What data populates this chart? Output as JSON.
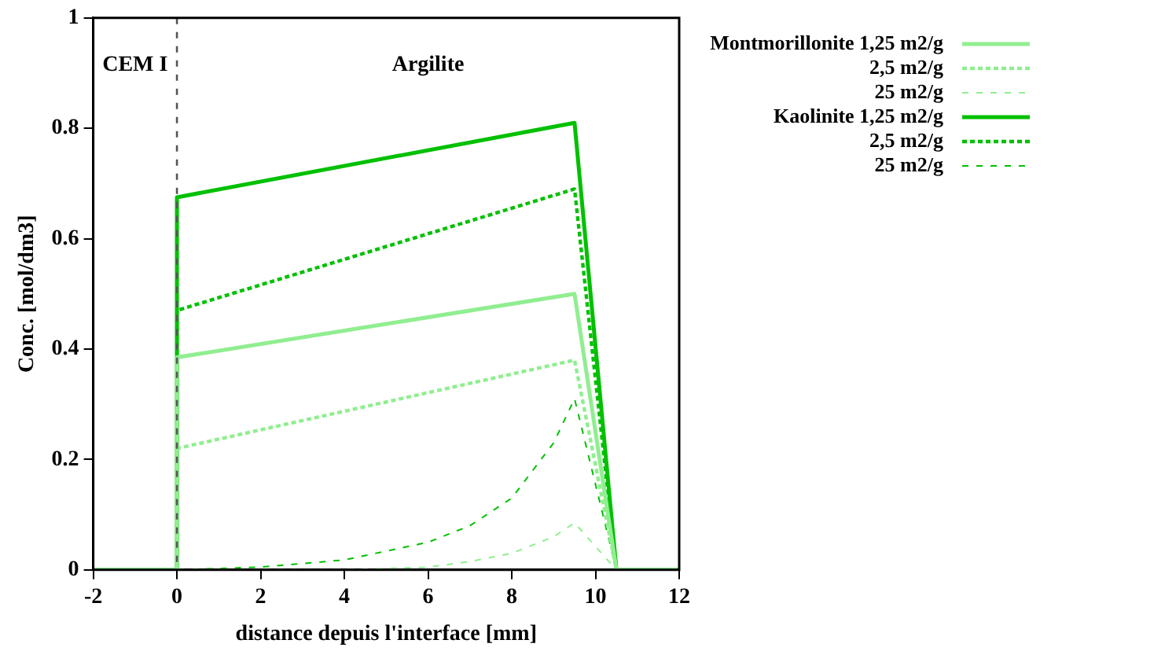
{
  "chart_data": {
    "type": "line",
    "xlabel": "distance depuis l'interface [mm]",
    "ylabel": "Conc. [mol/dm3]",
    "xlim": [
      -2,
      12
    ],
    "xticks": [
      -2,
      0,
      2,
      4,
      6,
      8,
      10,
      12
    ],
    "ylim": [
      0,
      1
    ],
    "yticks": [
      0,
      0.2,
      0.4,
      0.6,
      0.8,
      1
    ],
    "grid": false,
    "legend": "right",
    "marker": "none",
    "series": [
      {
        "name": "Montmorillonite 1,25 m2/g",
        "color": "#90ee90",
        "line_style": "solid",
        "x": [
          -2,
          0,
          0,
          9.5,
          10.5,
          12
        ],
        "values": [
          0,
          0,
          0.385,
          0.5,
          0,
          0
        ]
      },
      {
        "name": "2,5 m2/g",
        "color": "#90ee90",
        "line_style": "dotted",
        "x": [
          -2,
          0,
          0,
          9.5,
          10.5,
          12
        ],
        "values": [
          0,
          0,
          0.22,
          0.38,
          0,
          0
        ]
      },
      {
        "name": "25 m2/g",
        "color": "#90ee90",
        "line_style": "dashed",
        "x": [
          -2,
          0,
          2,
          4,
          6,
          7,
          8,
          9,
          9.5,
          10.5,
          12
        ],
        "values": [
          0,
          0,
          0,
          0,
          0.005,
          0.015,
          0.03,
          0.06,
          0.085,
          0,
          0
        ]
      },
      {
        "name": "Kaolinite 1,25 m2/g",
        "color": "#00c000",
        "line_style": "solid",
        "x": [
          -2,
          0,
          0,
          9.5,
          10.5,
          12
        ],
        "values": [
          0,
          0,
          0.675,
          0.81,
          0,
          0
        ]
      },
      {
        "name": "2,5 m2/g",
        "color": "#00c000",
        "line_style": "dotted",
        "x": [
          -2,
          0,
          0,
          9.5,
          10.5,
          12
        ],
        "values": [
          0,
          0,
          0.47,
          0.69,
          0,
          0
        ]
      },
      {
        "name": "25 m2/g",
        "color": "#00c000",
        "line_style": "dashed",
        "x": [
          -2,
          0,
          2,
          4,
          6,
          7,
          8,
          9,
          9.5,
          10.5,
          12
        ],
        "values": [
          0,
          0,
          0.005,
          0.018,
          0.05,
          0.08,
          0.13,
          0.23,
          0.31,
          0,
          0
        ]
      }
    ],
    "ref_lines": [
      {
        "axis": "x",
        "value": 0,
        "color": "#555555",
        "line_style": "dashed"
      }
    ],
    "annotations": [
      "CEM I",
      "Argilite"
    ]
  }
}
